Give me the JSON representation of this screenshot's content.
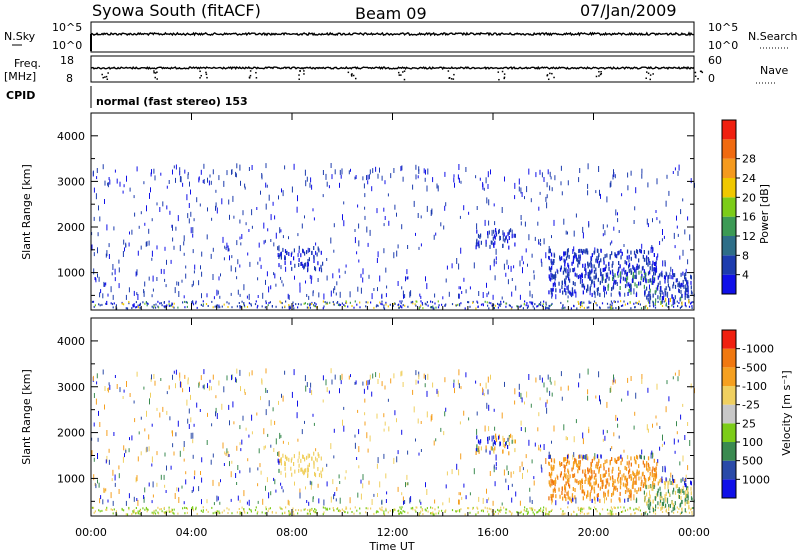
{
  "header": {
    "station": "Syowa South (fitACF)",
    "beam": "Beam 09",
    "date": "07/Jan/2009"
  },
  "params": {
    "nsky_label": "N.Sky",
    "nsky_ticks": [
      "10^5",
      "10^0"
    ],
    "nsearch_label": "N.Search",
    "nsearch_ticks": [
      "10^5",
      "10^0"
    ],
    "freq_label_1": "Freq.",
    "freq_label_2": "[MHz]",
    "freq_ticks": [
      "18",
      "8"
    ],
    "nave_label": "Nave",
    "nave_ticks": [
      "60",
      "0"
    ],
    "cpid_label": "CPID",
    "cpid_text": "normal (fast stereo) 153"
  },
  "chart_data": [
    {
      "type": "heatmap",
      "name": "power",
      "ylabel": "Slant Range [km]",
      "ylim": [
        180,
        4500
      ],
      "yticks": [
        "1000",
        "2000",
        "3000",
        "4000"
      ],
      "colorbar_label": "Power [dB]",
      "colorbar_ticks": [
        "4",
        "8",
        "12",
        "16",
        "20",
        "24",
        "28"
      ],
      "colors": [
        "#1010e8",
        "#1d3cae",
        "#2e6e88",
        "#3c9a55",
        "#7ccc18",
        "#f0c800",
        "#f59a1e",
        "#f06a10",
        "#f02010"
      ]
    },
    {
      "type": "heatmap",
      "name": "velocity",
      "ylabel": "Slant Range [km]",
      "ylim": [
        180,
        4500
      ],
      "yticks": [
        "1000",
        "2000",
        "3000",
        "4000"
      ],
      "colorbar_label": "Velocity [m s⁻¹]",
      "colorbar_ticks": [
        "1000",
        "500",
        "100",
        "25",
        "-25",
        "-100",
        "-500",
        "-1000"
      ],
      "colors": [
        "#1010e8",
        "#2a4aa8",
        "#3a8a50",
        "#7ccc18",
        "#c8c8c8",
        "#f0d060",
        "#f5a020",
        "#f07810",
        "#f02010"
      ]
    }
  ],
  "time_axis": {
    "label": "Time UT",
    "ticks": [
      "00:00",
      "04:00",
      "08:00",
      "12:00",
      "16:00",
      "20:00",
      "00:00"
    ]
  }
}
